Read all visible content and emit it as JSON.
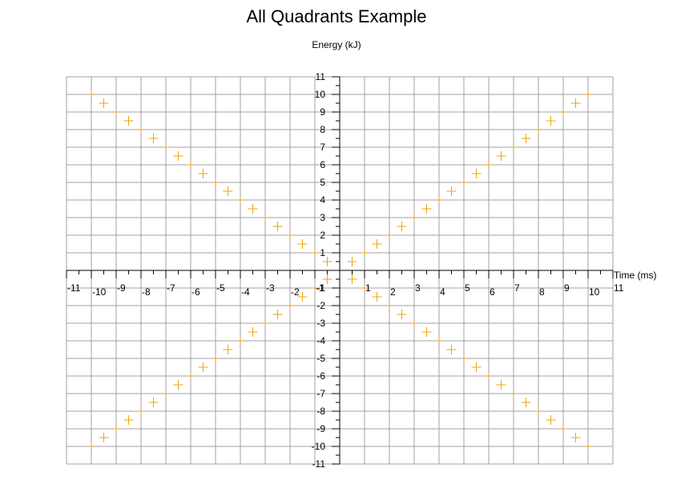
{
  "chart_data": {
    "type": "scatter",
    "title": "All Quadrants Example",
    "xlabel": "Time (ms)",
    "ylabel": "Energy (kJ)",
    "xlim": [
      -11,
      11
    ],
    "ylim": [
      -11,
      11
    ],
    "grid": true,
    "axes_position": "centered",
    "x_ticks": [
      -11,
      -10,
      -9,
      -8,
      -7,
      -6,
      -5,
      -4,
      -3,
      -2,
      -1,
      1,
      2,
      3,
      4,
      5,
      6,
      7,
      8,
      9,
      10,
      11
    ],
    "y_ticks": [
      -11,
      -10,
      -9,
      -8,
      -7,
      -6,
      -5,
      -4,
      -3,
      -2,
      -1,
      1,
      2,
      3,
      4,
      5,
      6,
      7,
      8,
      9,
      10,
      11
    ],
    "colors": {
      "marker": "#f0a30a",
      "grid": "#a0a0a0",
      "axis": "#000000"
    },
    "large_markers": [
      0.5,
      1.5,
      2.5,
      3.5,
      4.5,
      5.5,
      6.5,
      7.5,
      8.5,
      9.5
    ],
    "small_markers": [
      1,
      2,
      3,
      4,
      5,
      6,
      7,
      8,
      9,
      10
    ],
    "series": [
      {
        "marker": "plus",
        "points": [
          [
            0.5,
            0.5
          ],
          [
            1.5,
            1.5
          ],
          [
            2.5,
            2.5
          ],
          [
            3.5,
            3.5
          ],
          [
            4.5,
            4.5
          ],
          [
            5.5,
            5.5
          ],
          [
            6.5,
            6.5
          ],
          [
            7.5,
            7.5
          ],
          [
            8.5,
            8.5
          ],
          [
            9.5,
            9.5
          ],
          [
            -0.5,
            0.5
          ],
          [
            -1.5,
            1.5
          ],
          [
            -2.5,
            2.5
          ],
          [
            -3.5,
            3.5
          ],
          [
            -4.5,
            4.5
          ],
          [
            -5.5,
            5.5
          ],
          [
            -6.5,
            6.5
          ],
          [
            -7.5,
            7.5
          ],
          [
            -8.5,
            8.5
          ],
          [
            -9.5,
            9.5
          ],
          [
            -0.5,
            -0.5
          ],
          [
            -1.5,
            -1.5
          ],
          [
            -2.5,
            -2.5
          ],
          [
            -3.5,
            -3.5
          ],
          [
            -4.5,
            -4.5
          ],
          [
            -5.5,
            -5.5
          ],
          [
            -6.5,
            -6.5
          ],
          [
            -7.5,
            -7.5
          ],
          [
            -8.5,
            -8.5
          ],
          [
            -9.5,
            -9.5
          ],
          [
            0.5,
            -0.5
          ],
          [
            1.5,
            -1.5
          ],
          [
            2.5,
            -2.5
          ],
          [
            3.5,
            -3.5
          ],
          [
            4.5,
            -4.5
          ],
          [
            5.5,
            -5.5
          ],
          [
            6.5,
            -6.5
          ],
          [
            7.5,
            -7.5
          ],
          [
            8.5,
            -8.5
          ],
          [
            9.5,
            -9.5
          ],
          [
            1,
            1
          ],
          [
            2,
            2
          ],
          [
            3,
            3
          ],
          [
            4,
            4
          ],
          [
            5,
            5
          ],
          [
            6,
            6
          ],
          [
            7,
            7
          ],
          [
            8,
            8
          ],
          [
            9,
            9
          ],
          [
            10,
            10
          ],
          [
            -1,
            1
          ],
          [
            -2,
            2
          ],
          [
            -3,
            3
          ],
          [
            -4,
            4
          ],
          [
            -5,
            5
          ],
          [
            -6,
            6
          ],
          [
            -7,
            7
          ],
          [
            -8,
            8
          ],
          [
            -9,
            9
          ],
          [
            -10,
            10
          ],
          [
            -1,
            -1
          ],
          [
            -2,
            -2
          ],
          [
            -3,
            -3
          ],
          [
            -4,
            -4
          ],
          [
            -5,
            -5
          ],
          [
            -6,
            -6
          ],
          [
            -7,
            -7
          ],
          [
            -8,
            -8
          ],
          [
            -9,
            -9
          ],
          [
            -10,
            -10
          ],
          [
            1,
            -1
          ],
          [
            2,
            -2
          ],
          [
            3,
            -3
          ],
          [
            4,
            -4
          ],
          [
            5,
            -5
          ],
          [
            6,
            -6
          ],
          [
            7,
            -7
          ],
          [
            8,
            -8
          ],
          [
            9,
            -9
          ],
          [
            10,
            -10
          ]
        ]
      }
    ]
  }
}
